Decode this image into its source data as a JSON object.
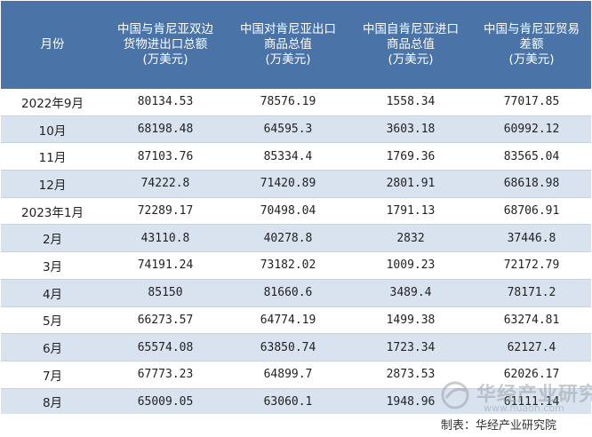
{
  "headers": [
    "月份",
    "中国与肯尼亚双边货物进出口总额\n(万美元)",
    "中国对肯尼亚出口商品总值\n(万美元)",
    "中国自肯尼亚进口商品总值\n(万美元)",
    "中国与肯尼亚贸易差额\n(万美元)"
  ],
  "header_lines": [
    [
      "月份"
    ],
    [
      "中国与肯尼亚双边",
      "货物进出口总额",
      "(万美元)"
    ],
    [
      "中国对肯尼亚出口",
      "商品总值",
      "(万美元)"
    ],
    [
      "中国自肯尼亚进口",
      "商品总值",
      "(万美元)"
    ],
    [
      "中国与肯尼亚贸易",
      "差额",
      "(万美元)"
    ]
  ],
  "rows": [
    [
      "2022年9月",
      "80134.53",
      "78576.19",
      "1558.34",
      "77017.85"
    ],
    [
      "10月",
      "68198.48",
      "64595.3",
      "3603.18",
      "60992.12"
    ],
    [
      "11月",
      "87103.76",
      "85334.4",
      "1769.36",
      "83565.04"
    ],
    [
      "12月",
      "74222.8",
      "71420.89",
      "2801.91",
      "68618.98"
    ],
    [
      "2023年1月",
      "72289.17",
      "70498.04",
      "1791.13",
      "68706.91"
    ],
    [
      "2月",
      "43110.8",
      "40278.8",
      "2832",
      "37446.8"
    ],
    [
      "3月",
      "74191.24",
      "73182.02",
      "1009.23",
      "72172.79"
    ],
    [
      "4月",
      "85150",
      "81660.6",
      "3489.4",
      "78171.2"
    ],
    [
      "5月",
      "66273.57",
      "64774.19",
      "1499.38",
      "63274.81"
    ],
    [
      "6月",
      "65574.08",
      "63850.74",
      "1723.34",
      "62127.4"
    ],
    [
      "7月",
      "67773.23",
      "64899.7",
      "2873.53",
      "62026.17"
    ],
    [
      "8月",
      "65009.05",
      "63060.1",
      "1948.96",
      "61111.14"
    ]
  ],
  "source": "制表：华经产业研究院",
  "watermark": {
    "name": "华经产业研究院",
    "url": "www.huaon.com"
  },
  "colors": {
    "header_bg": "#4a73a7",
    "stripe_bg": "#d9e2ef",
    "header_text": "#ffffff"
  }
}
